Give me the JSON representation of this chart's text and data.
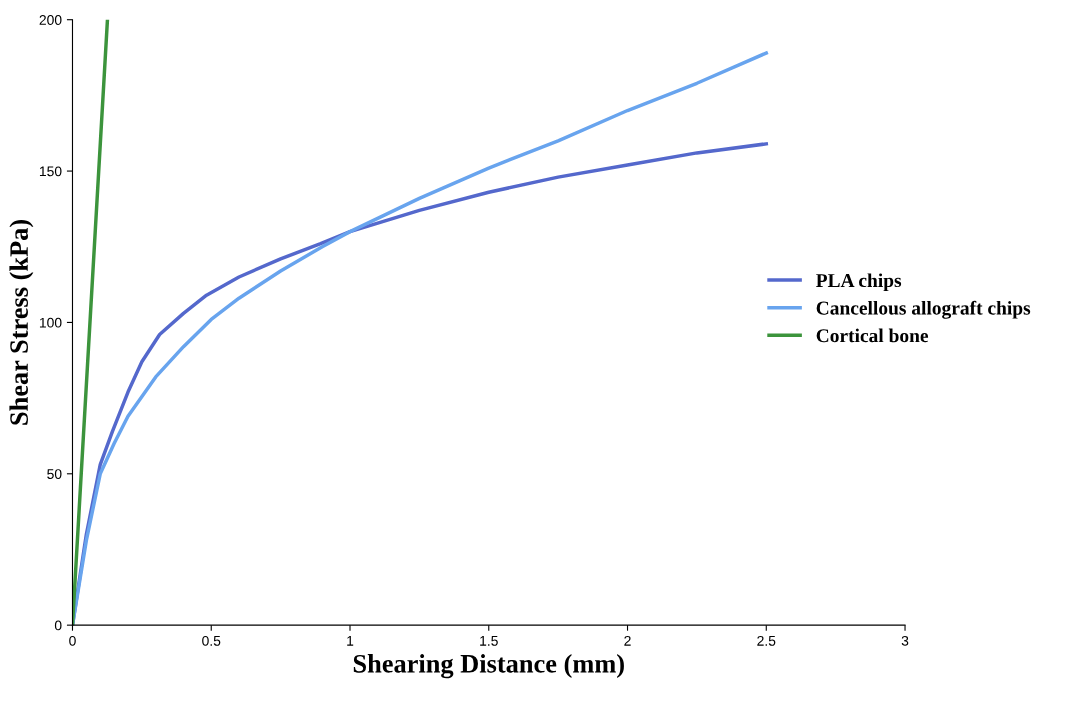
{
  "chart_data": {
    "type": "line",
    "xlabel": "Shearing Distance (mm)",
    "ylabel": "Shear Stress (kPa)",
    "xlim": [
      0,
      3
    ],
    "ylim": [
      0,
      200
    ],
    "xticks": [
      0,
      0.5,
      1,
      1.5,
      2,
      2.5,
      3
    ],
    "yticks": [
      0,
      50,
      100,
      150,
      200
    ],
    "grid": false,
    "legend": "right",
    "marker": "none",
    "line_style": "solid",
    "series": [
      {
        "name": "PLA chips",
        "color": "#5468cc",
        "x": [
          0,
          0.05,
          0.1,
          0.144,
          0.2,
          0.25,
          0.314,
          0.4,
          0.483,
          0.6,
          0.75,
          0.894,
          1.0,
          1.25,
          1.5,
          1.75,
          2.0,
          2.25,
          2.5
        ],
        "values": [
          0,
          30,
          53,
          64,
          77,
          87,
          96,
          103,
          109,
          115,
          121,
          126,
          130,
          137,
          143,
          148,
          152,
          156,
          159
        ]
      },
      {
        "name": "Cancellous allograft chips",
        "color": "#68a4ee",
        "x": [
          0,
          0.05,
          0.1,
          0.15,
          0.2,
          0.3,
          0.4,
          0.5,
          0.6,
          0.75,
          0.9,
          1.0,
          1.25,
          1.5,
          1.75,
          2.0,
          2.25,
          2.5
        ],
        "values": [
          0,
          28,
          50,
          60,
          69,
          82,
          92,
          101,
          108,
          117,
          125,
          130,
          141,
          151,
          160,
          170,
          179,
          189
        ]
      },
      {
        "name": "Cortical bone",
        "color": "#3c943c",
        "x": [
          0,
          0.126
        ],
        "values": [
          0,
          200
        ]
      }
    ]
  }
}
